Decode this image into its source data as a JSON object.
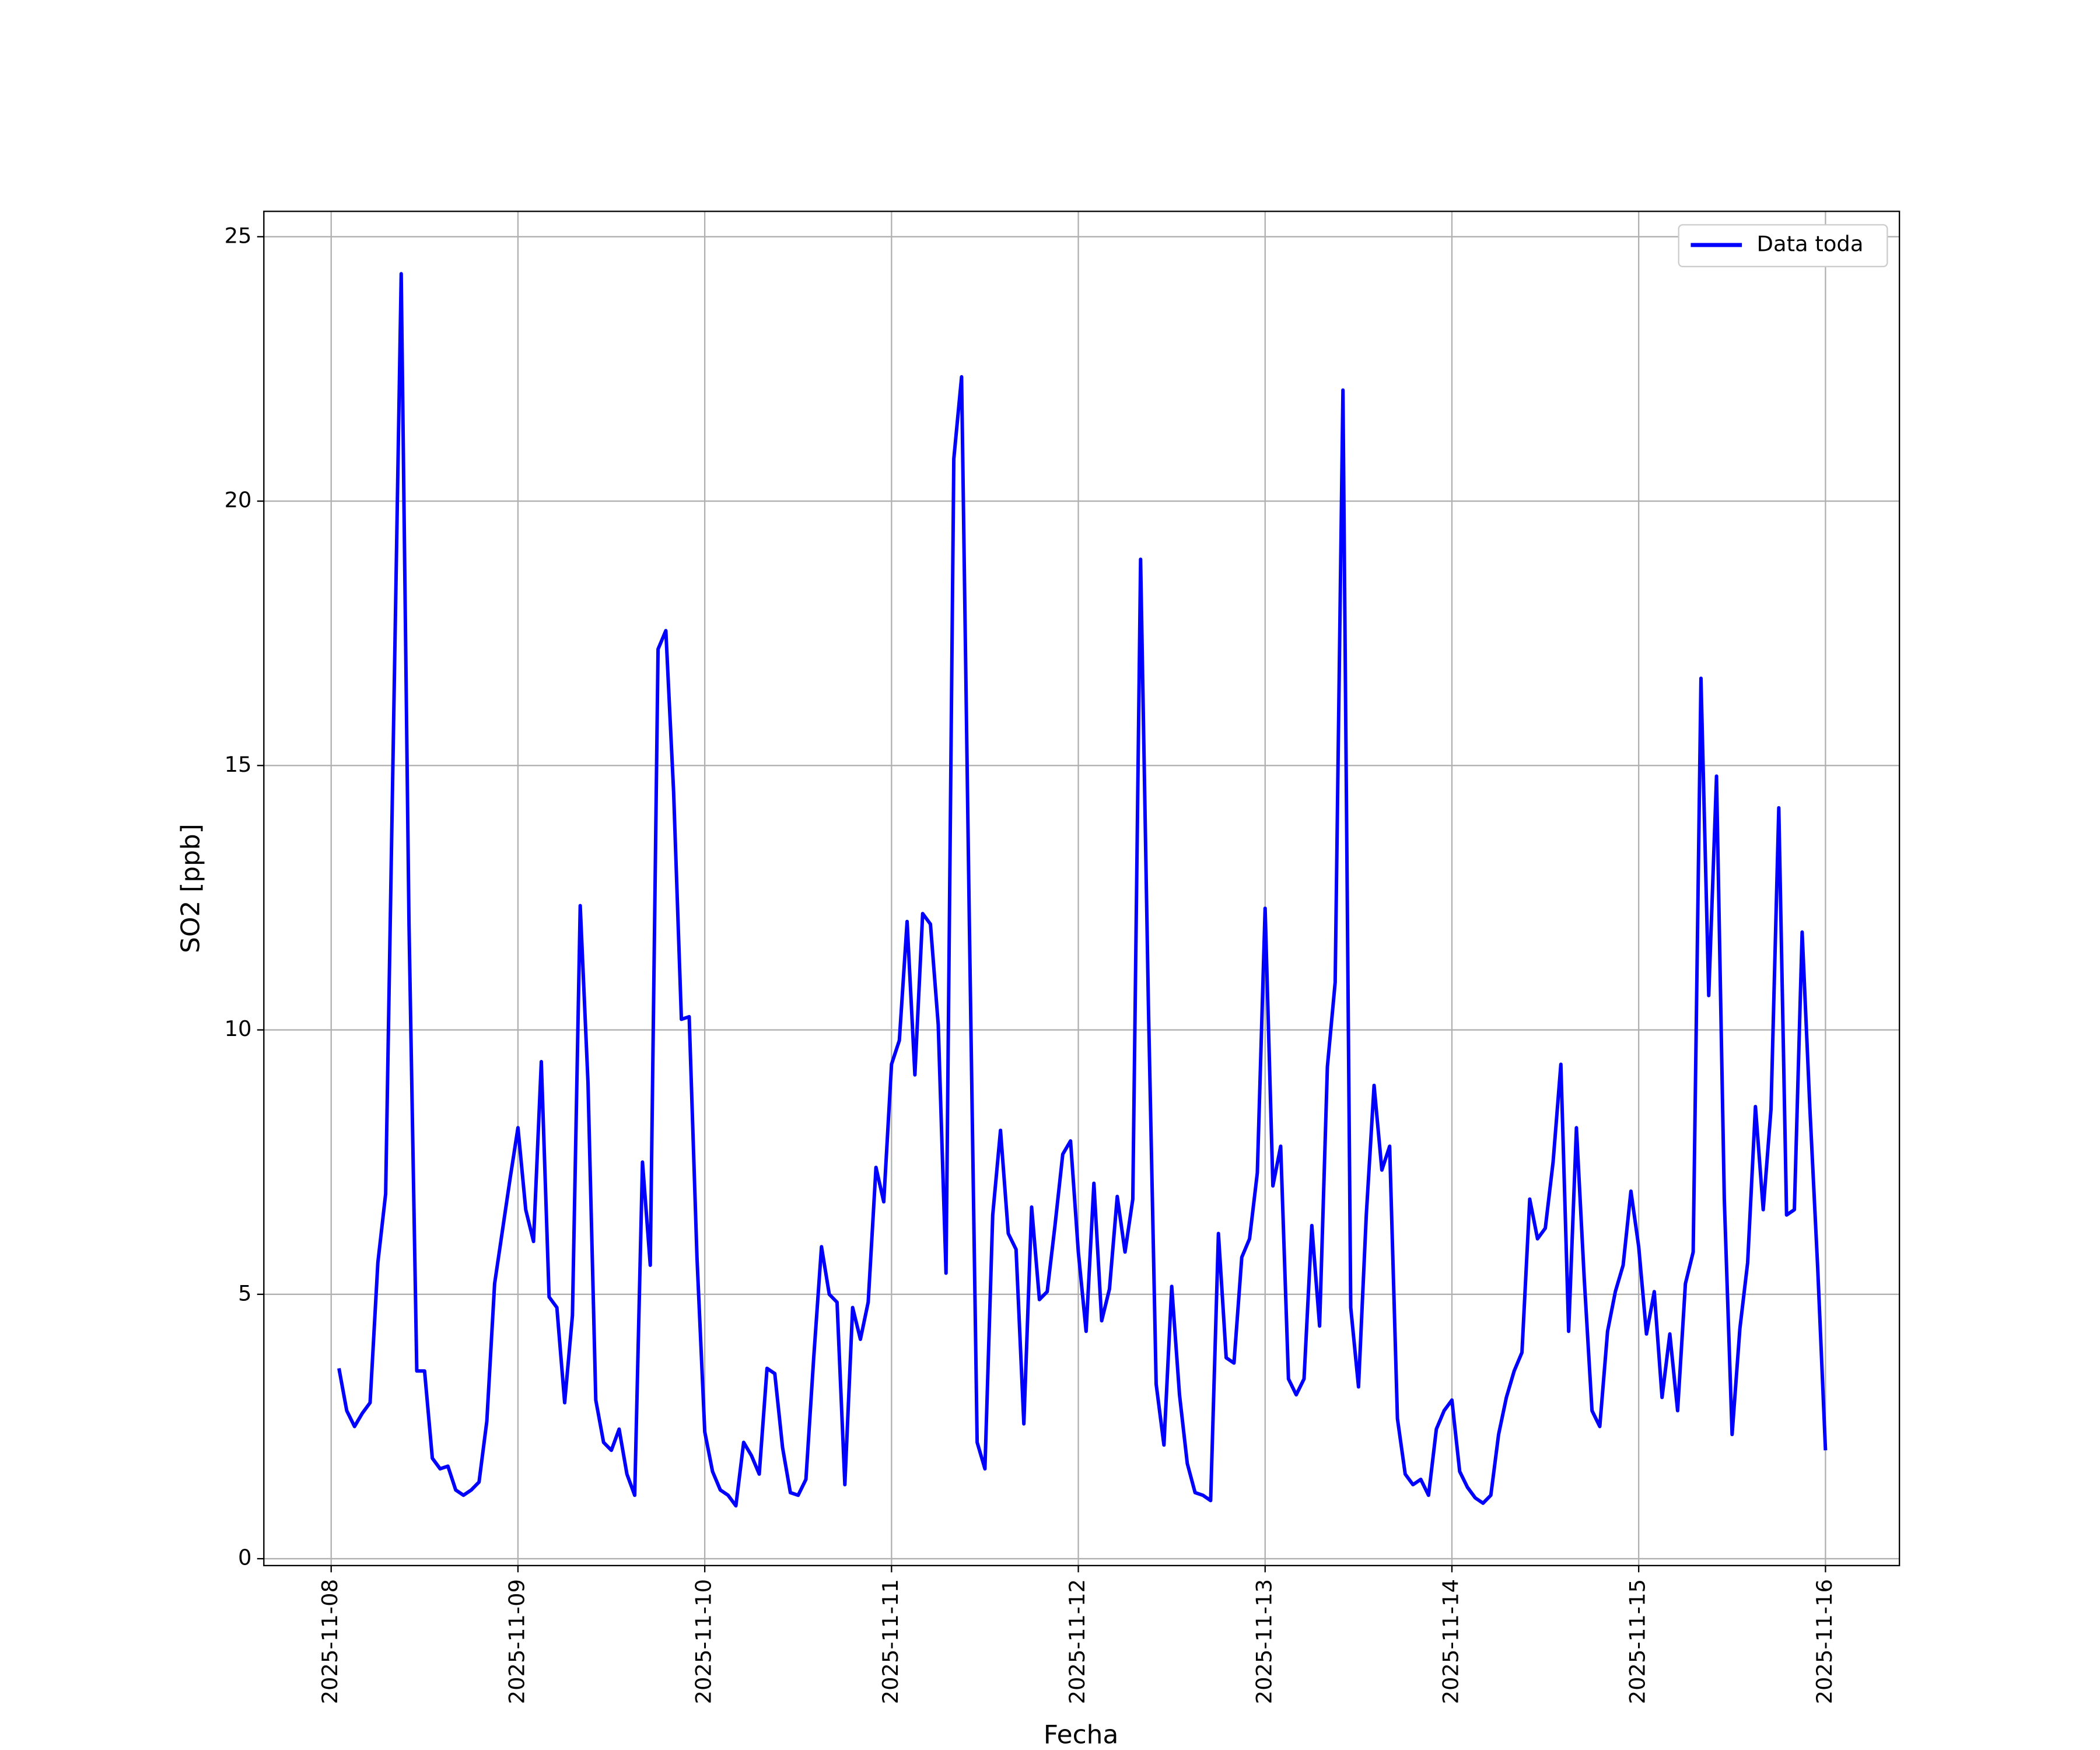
{
  "chart_data": {
    "type": "line",
    "xlabel": "Fecha",
    "ylabel": "SO2 [ppb]",
    "xlim": [
      "2025-11-07T15:21",
      "2025-11-16T09:30"
    ],
    "xticks": [
      "2025-11-08",
      "2025-11-09",
      "2025-11-10",
      "2025-11-11",
      "2025-11-12",
      "2025-11-13",
      "2025-11-14",
      "2025-11-15",
      "2025-11-16"
    ],
    "ylim": [
      -0.13,
      25.48
    ],
    "yticks": [
      0,
      5,
      10,
      15,
      20,
      25
    ],
    "grid": true,
    "legend": "upper right",
    "x": [
      "2025-11-08T01:00",
      "2025-11-08T02:00",
      "2025-11-08T03:00",
      "2025-11-08T04:00",
      "2025-11-08T05:00",
      "2025-11-08T06:00",
      "2025-11-08T07:00",
      "2025-11-08T08:00",
      "2025-11-08T09:00",
      "2025-11-08T10:00",
      "2025-11-08T11:00",
      "2025-11-08T12:00",
      "2025-11-08T13:00",
      "2025-11-08T14:00",
      "2025-11-08T15:00",
      "2025-11-08T16:00",
      "2025-11-08T17:00",
      "2025-11-08T18:00",
      "2025-11-08T19:00",
      "2025-11-08T20:00",
      "2025-11-08T21:00",
      "2025-11-08T22:00",
      "2025-11-08T23:00",
      "2025-11-09T00:00",
      "2025-11-09T01:00",
      "2025-11-09T02:00",
      "2025-11-09T03:00",
      "2025-11-09T04:00",
      "2025-11-09T05:00",
      "2025-11-09T06:00",
      "2025-11-09T07:00",
      "2025-11-09T08:00",
      "2025-11-09T09:00",
      "2025-11-09T10:00",
      "2025-11-09T11:00",
      "2025-11-09T12:00",
      "2025-11-09T13:00",
      "2025-11-09T14:00",
      "2025-11-09T15:00",
      "2025-11-09T16:00",
      "2025-11-09T17:00",
      "2025-11-09T18:00",
      "2025-11-09T19:00",
      "2025-11-09T20:00",
      "2025-11-09T21:00",
      "2025-11-09T22:00",
      "2025-11-09T23:00",
      "2025-11-10T00:00",
      "2025-11-10T01:00",
      "2025-11-10T02:00",
      "2025-11-10T03:00",
      "2025-11-10T04:00",
      "2025-11-10T05:00",
      "2025-11-10T06:00",
      "2025-11-10T07:00",
      "2025-11-10T08:00",
      "2025-11-10T09:00",
      "2025-11-10T10:00",
      "2025-11-10T11:00",
      "2025-11-10T12:00",
      "2025-11-10T13:00",
      "2025-11-10T14:00",
      "2025-11-10T15:00",
      "2025-11-10T16:00",
      "2025-11-10T17:00",
      "2025-11-10T18:00",
      "2025-11-10T19:00",
      "2025-11-10T20:00",
      "2025-11-10T21:00",
      "2025-11-10T22:00",
      "2025-11-10T23:00",
      "2025-11-11T00:00",
      "2025-11-11T01:00",
      "2025-11-11T02:00",
      "2025-11-11T03:00",
      "2025-11-11T04:00",
      "2025-11-11T05:00",
      "2025-11-11T06:00",
      "2025-11-11T07:00",
      "2025-11-11T08:00",
      "2025-11-11T09:00",
      "2025-11-11T10:00",
      "2025-11-11T11:00",
      "2025-11-11T12:00",
      "2025-11-11T13:00",
      "2025-11-11T14:00",
      "2025-11-11T15:00",
      "2025-11-11T16:00",
      "2025-11-11T17:00",
      "2025-11-11T18:00",
      "2025-11-11T19:00",
      "2025-11-11T20:00",
      "2025-11-11T21:00",
      "2025-11-11T22:00",
      "2025-11-11T23:00",
      "2025-11-12T00:00",
      "2025-11-12T01:00",
      "2025-11-12T02:00",
      "2025-11-12T03:00",
      "2025-11-12T04:00",
      "2025-11-12T05:00",
      "2025-11-12T06:00",
      "2025-11-12T07:00",
      "2025-11-12T08:00",
      "2025-11-12T09:00",
      "2025-11-12T10:00",
      "2025-11-12T11:00",
      "2025-11-12T12:00",
      "2025-11-12T13:00",
      "2025-11-12T14:00",
      "2025-11-12T15:00",
      "2025-11-12T16:00",
      "2025-11-12T17:00",
      "2025-11-12T18:00",
      "2025-11-12T19:00",
      "2025-11-12T20:00",
      "2025-11-12T21:00",
      "2025-11-12T22:00",
      "2025-11-12T23:00",
      "2025-11-13T00:00",
      "2025-11-13T01:00",
      "2025-11-13T02:00",
      "2025-11-13T03:00",
      "2025-11-13T04:00",
      "2025-11-13T05:00",
      "2025-11-13T06:00",
      "2025-11-13T07:00",
      "2025-11-13T08:00",
      "2025-11-13T09:00",
      "2025-11-13T10:00",
      "2025-11-13T11:00",
      "2025-11-13T12:00",
      "2025-11-13T13:00",
      "2025-11-13T14:00",
      "2025-11-13T15:00",
      "2025-11-13T16:00",
      "2025-11-13T17:00",
      "2025-11-13T18:00",
      "2025-11-13T19:00",
      "2025-11-13T20:00",
      "2025-11-13T21:00",
      "2025-11-13T22:00",
      "2025-11-13T23:00",
      "2025-11-14T00:00",
      "2025-11-14T01:00",
      "2025-11-14T02:00",
      "2025-11-14T03:00",
      "2025-11-14T04:00",
      "2025-11-14T05:00",
      "2025-11-14T06:00",
      "2025-11-14T07:00",
      "2025-11-14T08:00",
      "2025-11-14T09:00",
      "2025-11-14T10:00",
      "2025-11-14T11:00",
      "2025-11-14T12:00",
      "2025-11-14T13:00",
      "2025-11-14T14:00",
      "2025-11-14T15:00",
      "2025-11-14T16:00",
      "2025-11-14T17:00",
      "2025-11-14T18:00",
      "2025-11-14T19:00",
      "2025-11-14T20:00",
      "2025-11-14T21:00",
      "2025-11-14T22:00",
      "2025-11-14T23:00",
      "2025-11-15T00:00",
      "2025-11-15T01:00",
      "2025-11-15T02:00",
      "2025-11-15T03:00",
      "2025-11-15T04:00",
      "2025-11-15T05:00",
      "2025-11-15T06:00",
      "2025-11-15T07:00",
      "2025-11-15T08:00",
      "2025-11-15T09:00",
      "2025-11-15T10:00",
      "2025-11-15T11:00",
      "2025-11-15T12:00",
      "2025-11-15T13:00",
      "2025-11-15T14:00",
      "2025-11-15T15:00",
      "2025-11-15T16:00",
      "2025-11-15T17:00",
      "2025-11-15T18:00",
      "2025-11-15T19:00",
      "2025-11-15T20:00",
      "2025-11-15T21:00",
      "2025-11-15T22:00",
      "2025-11-15T23:00",
      "2025-11-16T00:00"
    ],
    "series": [
      {
        "name": "Data toda",
        "color": "#0000ff",
        "values": [
          3.6,
          2.8,
          2.5,
          2.75,
          2.95,
          5.6,
          6.9,
          15.6,
          24.3,
          12,
          3.55,
          3.55,
          1.9,
          1.7,
          1.75,
          1.3,
          1.2,
          1.3,
          1.45,
          2.6,
          5.2,
          6.2,
          7.2,
          8.15,
          6.6,
          6.0,
          9.4,
          4.95,
          4.75,
          2.95,
          4.6,
          12.35,
          9.0,
          3.0,
          2.2,
          2.05,
          2.45,
          1.6,
          1.2,
          7.5,
          5.55,
          17.2,
          17.55,
          14.5,
          10.2,
          10.25,
          5.7,
          2.4,
          1.65,
          1.3,
          1.2,
          1.0,
          2.2,
          1.95,
          1.6,
          3.6,
          3.5,
          2.1,
          1.25,
          1.2,
          1.5,
          3.8,
          5.9,
          5.0,
          4.85,
          1.4,
          4.75,
          4.15,
          4.85,
          7.4,
          6.75,
          9.35,
          9.8,
          12.05,
          9.15,
          12.2,
          12.0,
          10.1,
          5.4,
          20.8,
          22.35,
          12,
          2.2,
          1.7,
          6.5,
          8.1,
          6.15,
          5.85,
          2.55,
          6.65,
          4.9,
          5.05,
          6.3,
          7.65,
          7.9,
          5.8,
          4.3,
          7.1,
          4.5,
          5.1,
          6.85,
          5.8,
          6.8,
          18.9,
          10.5,
          3.3,
          2.15,
          5.15,
          3.1,
          1.8,
          1.25,
          1.2,
          1.1,
          6.15,
          3.8,
          3.7,
          5.7,
          6.05,
          7.3,
          12.3,
          7.05,
          7.8,
          3.4,
          3.1,
          3.4,
          6.3,
          4.4,
          9.3,
          10.9,
          22.1,
          4.75,
          3.25,
          6.5,
          8.95,
          7.35,
          7.8,
          2.65,
          1.6,
          1.4,
          1.5,
          1.2,
          2.45,
          2.8,
          3.0,
          1.65,
          1.35,
          1.15,
          1.05,
          1.2,
          2.35,
          3.05,
          3.55,
          3.9,
          6.8,
          6.05,
          6.25,
          7.5,
          9.35,
          4.3,
          8.15,
          5.3,
          2.8,
          2.5,
          4.3,
          5.05,
          5.55,
          6.95,
          5.9,
          4.25,
          5.05,
          3.05,
          4.25,
          2.8,
          5.2,
          5.8,
          16.65,
          10.65,
          14.8,
          6.8,
          2.35,
          4.35,
          5.6,
          8.55,
          6.6,
          8.5,
          14.2,
          6.5,
          6.6,
          11.85,
          8.5,
          5.5,
          2.05
        ]
      }
    ]
  }
}
